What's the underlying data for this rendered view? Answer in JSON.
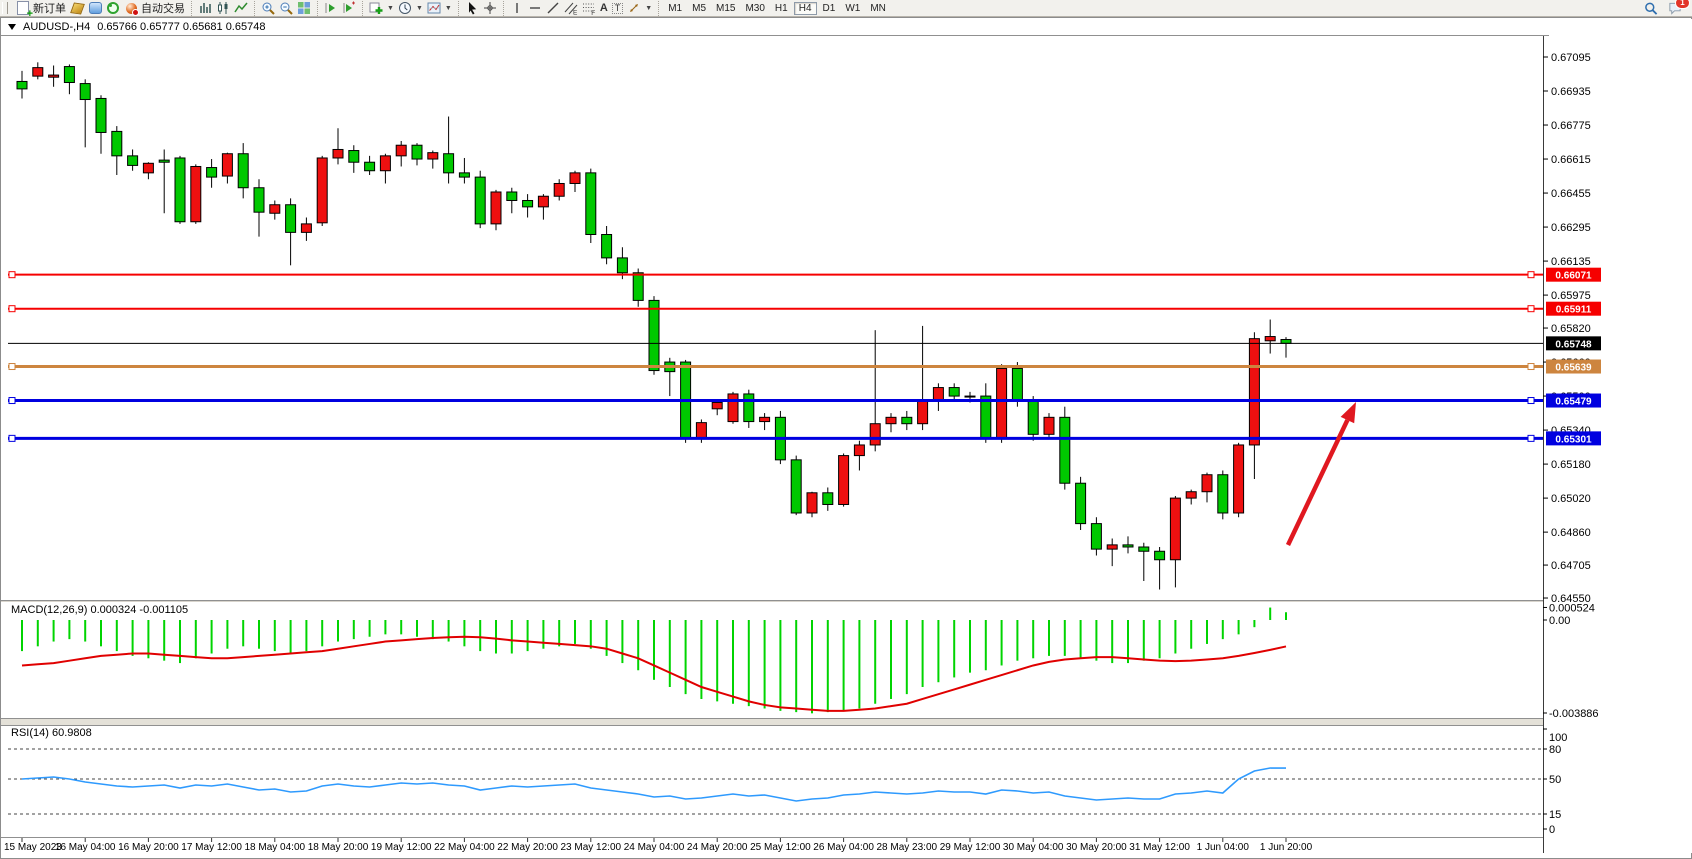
{
  "toolbar": {
    "new_order_label": "新订单",
    "autotrading_label": "自动交易",
    "glyphs": {
      "channel": "E",
      "fibonacci": "F",
      "text": "A",
      "label": "T"
    },
    "timeframes": {
      "items": [
        "M1",
        "M5",
        "M15",
        "M30",
        "H1",
        "H4",
        "D1",
        "W1",
        "MN"
      ],
      "active": "H4"
    },
    "notification_count": "1"
  },
  "chart_header": {
    "symbol": "AUDUSD-,H4",
    "ohlc": "0.65766 0.65777 0.65681 0.65748"
  },
  "hlines": [
    {
      "price": 0.66071,
      "label": "0.66071",
      "color": "#F60000",
      "width": 2,
      "markers": true
    },
    {
      "price": 0.65911,
      "label": "0.65911",
      "color": "#F60000",
      "width": 2,
      "markers": true
    },
    {
      "price": 0.65748,
      "label": "0.65748",
      "color": "#000000",
      "width": 1,
      "markers": false
    },
    {
      "price": 0.65639,
      "label": "0.65639",
      "color": "#CD853F",
      "width": 3,
      "markers": true
    },
    {
      "price": 0.65479,
      "label": "0.65479",
      "color": "#0000E0",
      "width": 3,
      "markers": true
    },
    {
      "price": 0.65301,
      "label": "0.65301",
      "color": "#0000E0",
      "width": 3,
      "markers": true
    }
  ],
  "annotation_arrow": {
    "from": [
      1288,
      545
    ],
    "to": [
      1356,
      402
    ],
    "color": "#E01820"
  },
  "indicator_macd": {
    "label": "MACD(12,26,9) 0.000324 -0.001105",
    "axis_max": "0.000524",
    "axis_zero": "0.00",
    "axis_min": "-0.003886"
  },
  "indicator_rsi": {
    "label": "RSI(14) 60.9808",
    "axis_labels": [
      "100",
      "80",
      "50",
      "15",
      "0"
    ],
    "axis_values": [
      100,
      80,
      50,
      15,
      0
    ],
    "levels": [
      80,
      50,
      15
    ]
  },
  "chart_data": {
    "type": "candlestick",
    "symbol": "AUDUSD",
    "timeframe": "H4",
    "up_color": "#EE1010",
    "down_color": "#00C800",
    "macd_color": "#00D400",
    "signal_color": "#E00000",
    "rsi_color": "#2E9AFE",
    "y_ticks": [
      "0.67095",
      "0.66935",
      "0.66775",
      "0.66615",
      "0.66455",
      "0.66295",
      "0.66135",
      "0.65975",
      "0.65820",
      "0.65660",
      "0.65500",
      "0.65340",
      "0.65180",
      "0.65020",
      "0.64860",
      "0.64705",
      "0.64550"
    ],
    "x_labels": [
      "15 May 2023",
      "16 May 04:00",
      "16 May 20:00",
      "17 May 12:00",
      "18 May 04:00",
      "18 May 20:00",
      "19 May 12:00",
      "22 May 04:00",
      "22 May 20:00",
      "23 May 12:00",
      "24 May 04:00",
      "24 May 20:00",
      "25 May 12:00",
      "26 May 04:00",
      "28 May 23:00",
      "29 May 12:00",
      "30 May 04:00",
      "30 May 20:00",
      "31 May 12:00",
      "1 Jun 04:00",
      "1 Jun 20:00"
    ],
    "candles": [
      [
        0.6698,
        0.6703,
        0.669,
        0.66945
      ],
      [
        0.67005,
        0.6707,
        0.6699,
        0.67045
      ],
      [
        0.67,
        0.67055,
        0.66955,
        0.6701
      ],
      [
        0.6705,
        0.6706,
        0.6692,
        0.66975
      ],
      [
        0.6697,
        0.6699,
        0.6667,
        0.66895
      ],
      [
        0.669,
        0.66915,
        0.6664,
        0.6674
      ],
      [
        0.66745,
        0.6677,
        0.6654,
        0.6663
      ],
      [
        0.6663,
        0.6666,
        0.6656,
        0.66585
      ],
      [
        0.6655,
        0.666,
        0.6652,
        0.66595
      ],
      [
        0.6661,
        0.6666,
        0.6636,
        0.666
      ],
      [
        0.6662,
        0.6663,
        0.6631,
        0.6632
      ],
      [
        0.6632,
        0.6659,
        0.6631,
        0.6658
      ],
      [
        0.66575,
        0.66615,
        0.6648,
        0.6653
      ],
      [
        0.66535,
        0.66645,
        0.665,
        0.6664
      ],
      [
        0.6664,
        0.6669,
        0.6643,
        0.6648
      ],
      [
        0.6648,
        0.6652,
        0.6625,
        0.66365
      ],
      [
        0.6636,
        0.6642,
        0.6633,
        0.664
      ],
      [
        0.664,
        0.6643,
        0.66115,
        0.6627
      ],
      [
        0.6627,
        0.6634,
        0.6623,
        0.6631
      ],
      [
        0.66315,
        0.6663,
        0.663,
        0.6662
      ],
      [
        0.6662,
        0.6676,
        0.6659,
        0.6666
      ],
      [
        0.66655,
        0.6668,
        0.6655,
        0.666
      ],
      [
        0.666,
        0.6663,
        0.6654,
        0.6656
      ],
      [
        0.6656,
        0.6664,
        0.665,
        0.6663
      ],
      [
        0.6663,
        0.667,
        0.6658,
        0.6668
      ],
      [
        0.6668,
        0.6669,
        0.66585,
        0.66615
      ],
      [
        0.66615,
        0.66655,
        0.6657,
        0.66645
      ],
      [
        0.6664,
        0.66815,
        0.665,
        0.6655
      ],
      [
        0.6655,
        0.6662,
        0.665,
        0.6653
      ],
      [
        0.6653,
        0.6656,
        0.6629,
        0.6631
      ],
      [
        0.6631,
        0.6647,
        0.6628,
        0.6646
      ],
      [
        0.6646,
        0.6648,
        0.6636,
        0.6642
      ],
      [
        0.6642,
        0.6645,
        0.6634,
        0.6639
      ],
      [
        0.6639,
        0.6645,
        0.6633,
        0.6644
      ],
      [
        0.6644,
        0.6652,
        0.6642,
        0.665
      ],
      [
        0.665,
        0.6656,
        0.6646,
        0.6655
      ],
      [
        0.6655,
        0.6657,
        0.6622,
        0.6626
      ],
      [
        0.6626,
        0.663,
        0.6612,
        0.6615
      ],
      [
        0.6615,
        0.662,
        0.6605,
        0.6608
      ],
      [
        0.6608,
        0.661,
        0.6592,
        0.6595
      ],
      [
        0.6595,
        0.6597,
        0.656,
        0.6562
      ],
      [
        0.6566,
        0.6568,
        0.655,
        0.65615
      ],
      [
        0.6566,
        0.6567,
        0.6528,
        0.653
      ],
      [
        0.653,
        0.6539,
        0.6528,
        0.65375
      ],
      [
        0.6544,
        0.6548,
        0.6541,
        0.6547
      ],
      [
        0.6538,
        0.6552,
        0.6537,
        0.6551
      ],
      [
        0.6551,
        0.6553,
        0.6535,
        0.6538
      ],
      [
        0.6538,
        0.6542,
        0.6534,
        0.654
      ],
      [
        0.654,
        0.6543,
        0.6518,
        0.652
      ],
      [
        0.652,
        0.6522,
        0.6494,
        0.6495
      ],
      [
        0.6495,
        0.6505,
        0.6493,
        0.65045
      ],
      [
        0.65045,
        0.6507,
        0.6496,
        0.6499
      ],
      [
        0.6499,
        0.6523,
        0.6498,
        0.6522
      ],
      [
        0.6522,
        0.6529,
        0.6515,
        0.6527
      ],
      [
        0.6527,
        0.6581,
        0.6524,
        0.6537
      ],
      [
        0.6537,
        0.6542,
        0.6533,
        0.654
      ],
      [
        0.654,
        0.6543,
        0.6534,
        0.6537
      ],
      [
        0.6537,
        0.6583,
        0.6534,
        0.6548
      ],
      [
        0.6548,
        0.6556,
        0.6543,
        0.6554
      ],
      [
        0.6554,
        0.6556,
        0.6548,
        0.655
      ],
      [
        0.655,
        0.6552,
        0.6547,
        0.655
      ],
      [
        0.655,
        0.6556,
        0.6528,
        0.653
      ],
      [
        0.653,
        0.6565,
        0.6528,
        0.6563
      ],
      [
        0.6563,
        0.6566,
        0.6545,
        0.6548
      ],
      [
        0.6548,
        0.655,
        0.6529,
        0.6532
      ],
      [
        0.6532,
        0.6542,
        0.653,
        0.654
      ],
      [
        0.654,
        0.6545,
        0.6506,
        0.6509
      ],
      [
        0.6509,
        0.6512,
        0.6487,
        0.649
      ],
      [
        0.649,
        0.6493,
        0.6475,
        0.6478
      ],
      [
        0.6478,
        0.6483,
        0.647,
        0.648
      ],
      [
        0.648,
        0.6484,
        0.6476,
        0.6479
      ],
      [
        0.6479,
        0.6481,
        0.6463,
        0.6477
      ],
      [
        0.6477,
        0.6479,
        0.6459,
        0.6473
      ],
      [
        0.6473,
        0.6503,
        0.646,
        0.6502
      ],
      [
        0.6502,
        0.6506,
        0.6499,
        0.6505
      ],
      [
        0.6505,
        0.6514,
        0.65,
        0.6513
      ],
      [
        0.6513,
        0.6515,
        0.6492,
        0.6495
      ],
      [
        0.6495,
        0.6528,
        0.6493,
        0.6527
      ],
      [
        0.6527,
        0.658,
        0.6511,
        0.6577
      ],
      [
        0.6576,
        0.6586,
        0.657,
        0.6578
      ],
      [
        0.65766,
        0.65777,
        0.65681,
        0.65748
      ]
    ],
    "macd": {
      "histogram": [
        -0.0013,
        -0.0011,
        -0.0009,
        -0.0008,
        -0.0009,
        -0.0011,
        -0.0013,
        -0.0015,
        -0.0016,
        -0.0017,
        -0.0018,
        -0.0016,
        -0.0014,
        -0.0012,
        -0.0011,
        -0.0012,
        -0.0013,
        -0.0014,
        -0.0013,
        -0.0011,
        -0.0009,
        -0.0008,
        -0.0007,
        -0.0006,
        -0.0006,
        -0.0007,
        -0.0008,
        -0.0009,
        -0.0011,
        -0.0013,
        -0.0014,
        -0.0014,
        -0.0013,
        -0.0012,
        -0.0011,
        -0.001,
        -0.0012,
        -0.0015,
        -0.0018,
        -0.0021,
        -0.0025,
        -0.0028,
        -0.0031,
        -0.0033,
        -0.0034,
        -0.0035,
        -0.0036,
        -0.0037,
        -0.0038,
        -0.00385,
        -0.0039,
        -0.00385,
        -0.0038,
        -0.0037,
        -0.0035,
        -0.0033,
        -0.0031,
        -0.0028,
        -0.0026,
        -0.0024,
        -0.0022,
        -0.0021,
        -0.0019,
        -0.0017,
        -0.0016,
        -0.0015,
        -0.0015,
        -0.0016,
        -0.0017,
        -0.0018,
        -0.0018,
        -0.0017,
        -0.0016,
        -0.0014,
        -0.0012,
        -0.001,
        -0.0008,
        -0.0006,
        -0.0003,
        0.00052,
        0.000324
      ],
      "signal": [
        -0.0019,
        -0.00185,
        -0.0018,
        -0.0017,
        -0.0016,
        -0.0015,
        -0.00145,
        -0.0014,
        -0.0014,
        -0.00145,
        -0.0015,
        -0.00155,
        -0.0016,
        -0.0016,
        -0.00155,
        -0.0015,
        -0.00145,
        -0.0014,
        -0.00135,
        -0.0013,
        -0.0012,
        -0.0011,
        -0.001,
        -0.0009,
        -0.00085,
        -0.0008,
        -0.00075,
        -0.00072,
        -0.0007,
        -0.00072,
        -0.00078,
        -0.00085,
        -0.0009,
        -0.00095,
        -0.001,
        -0.00105,
        -0.0011,
        -0.0012,
        -0.0014,
        -0.0016,
        -0.0019,
        -0.0022,
        -0.0025,
        -0.0028,
        -0.003,
        -0.0032,
        -0.0034,
        -0.00355,
        -0.00365,
        -0.0037,
        -0.00375,
        -0.0038,
        -0.0038,
        -0.00375,
        -0.0037,
        -0.0036,
        -0.0035,
        -0.0033,
        -0.0031,
        -0.0029,
        -0.0027,
        -0.0025,
        -0.0023,
        -0.0021,
        -0.0019,
        -0.00175,
        -0.00165,
        -0.0016,
        -0.00155,
        -0.00155,
        -0.0016,
        -0.00165,
        -0.0017,
        -0.00172,
        -0.0017,
        -0.00165,
        -0.0016,
        -0.0015,
        -0.00138,
        -0.00125,
        -0.001105
      ]
    },
    "rsi": [
      50,
      51,
      52,
      50,
      47,
      45,
      43,
      42,
      43,
      44,
      41,
      44,
      43,
      45,
      42,
      39,
      40,
      37,
      38,
      43,
      45,
      43,
      42,
      44,
      46,
      45,
      46,
      44,
      43,
      39,
      41,
      43,
      42,
      43,
      44,
      45,
      41,
      39,
      37,
      35,
      32,
      33,
      30,
      31,
      33,
      35,
      33,
      34,
      31,
      28,
      30,
      31,
      34,
      35,
      37,
      36,
      35,
      36,
      38,
      37,
      37,
      35,
      39,
      38,
      36,
      37,
      33,
      31,
      29,
      30,
      31,
      30,
      30,
      35,
      36,
      38,
      36,
      50,
      58,
      61,
      60.98
    ]
  }
}
